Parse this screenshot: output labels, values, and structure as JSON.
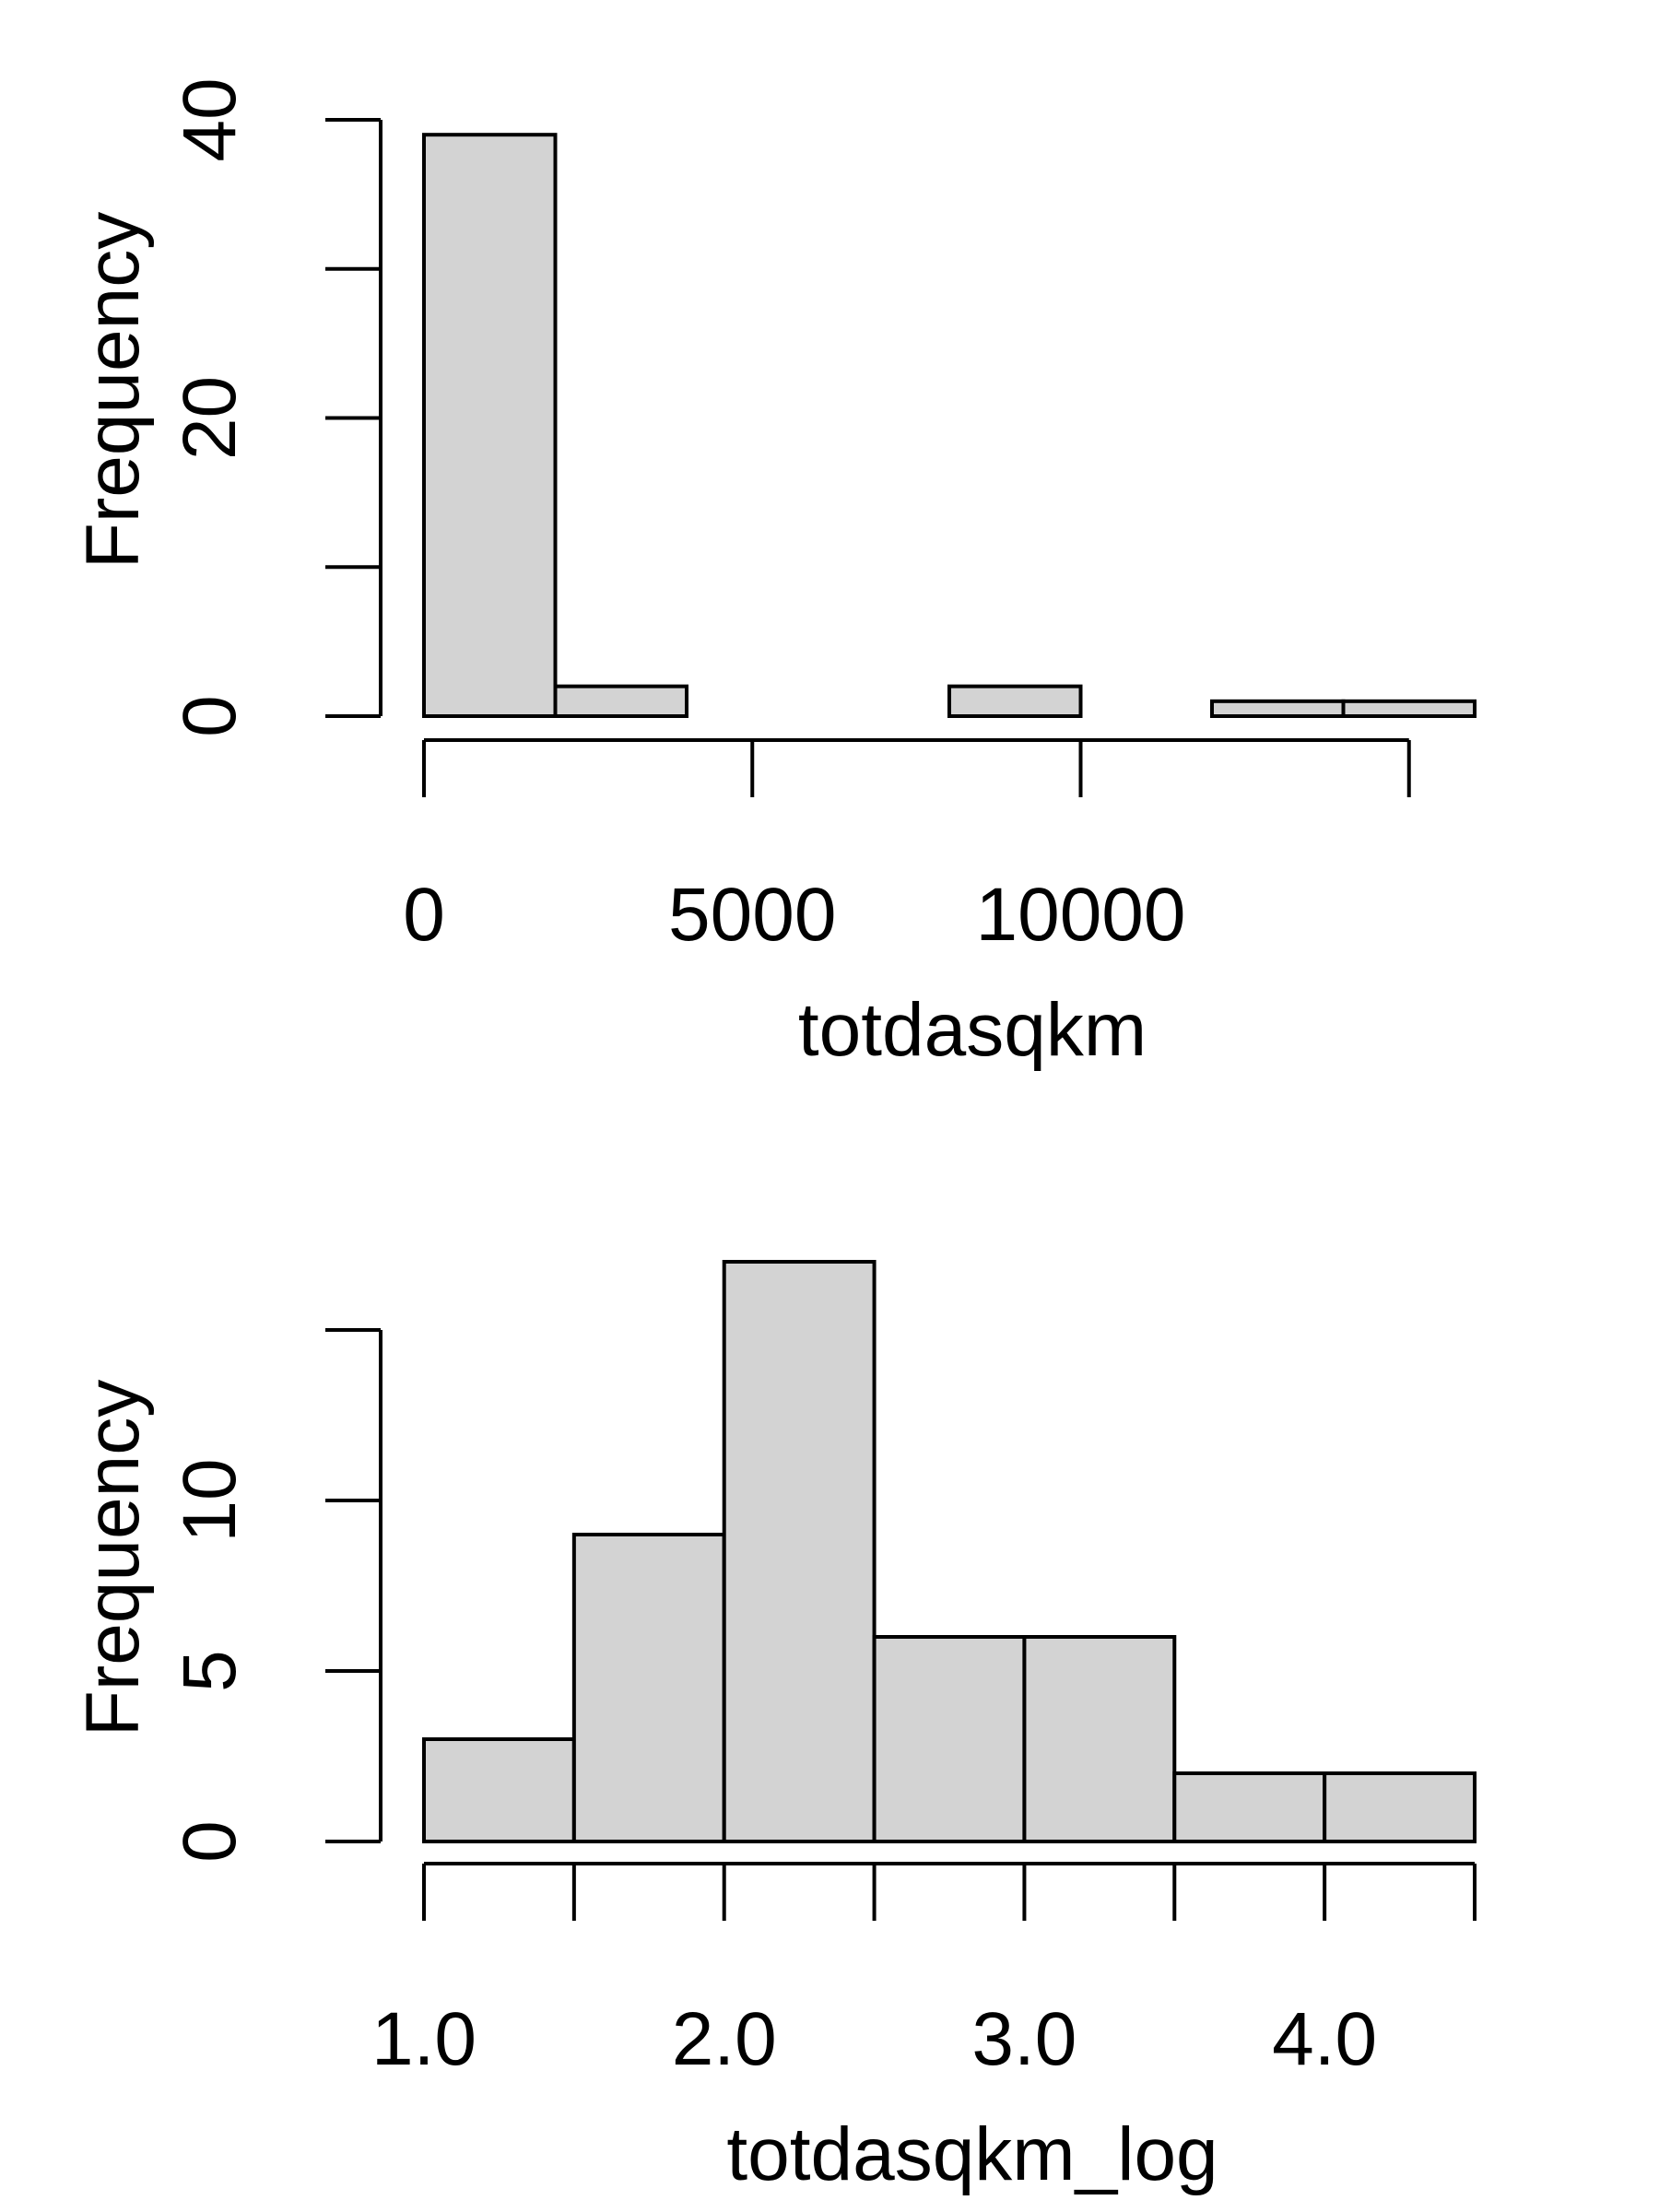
{
  "chart_data": [
    {
      "type": "bar",
      "subtype": "histogram",
      "title": "",
      "xlabel": "totdasqkm",
      "ylabel": "Frequency",
      "bins": [
        {
          "start": 0,
          "end": 2000,
          "count": 39
        },
        {
          "start": 2000,
          "end": 4000,
          "count": 2
        },
        {
          "start": 4000,
          "end": 6000,
          "count": 0
        },
        {
          "start": 6000,
          "end": 8000,
          "count": 0
        },
        {
          "start": 8000,
          "end": 10000,
          "count": 2
        },
        {
          "start": 10000,
          "end": 12000,
          "count": 0
        },
        {
          "start": 12000,
          "end": 14000,
          "count": 1
        },
        {
          "start": 14000,
          "end": 16000,
          "count": 1
        }
      ],
      "xlim": [
        0,
        16000
      ],
      "ylim": [
        0,
        40
      ],
      "xticks": [
        0,
        5000,
        10000,
        15000
      ],
      "xtick_labels": [
        "0",
        "5000",
        "10000",
        ""
      ],
      "yticks": [
        0,
        10,
        20,
        30,
        40
      ],
      "ytick_labels": [
        "0",
        "",
        "20",
        "",
        "40"
      ],
      "grid": false,
      "legend": "none"
    },
    {
      "type": "bar",
      "subtype": "histogram",
      "title": "",
      "xlabel": "totdasqkm_log",
      "ylabel": "Frequency",
      "bins": [
        {
          "start": 1.0,
          "end": 1.5,
          "count": 3
        },
        {
          "start": 1.5,
          "end": 2.0,
          "count": 9
        },
        {
          "start": 2.0,
          "end": 2.5,
          "count": 17
        },
        {
          "start": 2.5,
          "end": 3.0,
          "count": 6
        },
        {
          "start": 3.0,
          "end": 3.5,
          "count": 6
        },
        {
          "start": 3.5,
          "end": 4.0,
          "count": 2
        },
        {
          "start": 4.0,
          "end": 4.5,
          "count": 2
        }
      ],
      "xlim": [
        1.0,
        4.5
      ],
      "ylim": [
        0,
        17
      ],
      "xticks": [
        1.0,
        1.5,
        2.0,
        2.5,
        3.0,
        3.5,
        4.0,
        4.5
      ],
      "xtick_labels": [
        "1.0",
        "",
        "2.0",
        "",
        "3.0",
        "",
        "4.0",
        ""
      ],
      "yticks": [
        0,
        5,
        10,
        15
      ],
      "ytick_labels": [
        "0",
        "5",
        "10",
        ""
      ],
      "grid": false,
      "legend": "none"
    }
  ]
}
